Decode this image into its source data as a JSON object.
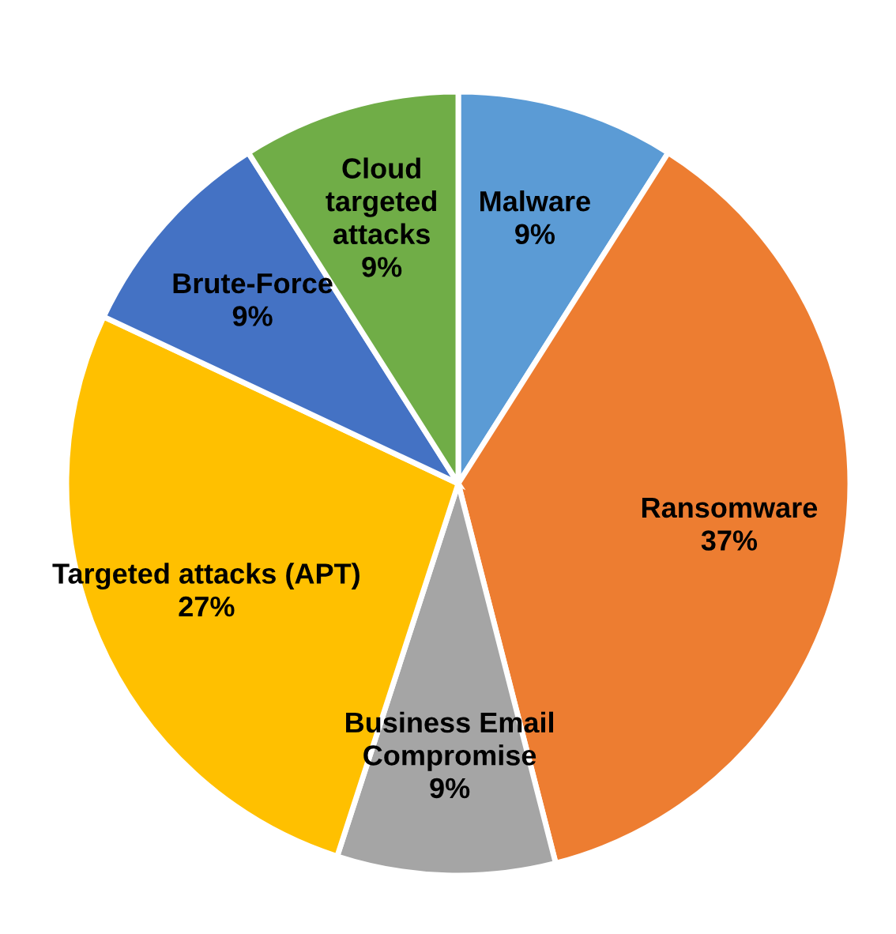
{
  "chart_data": {
    "type": "pie",
    "categories": [
      "Malware",
      "Ransomware",
      "Business Email\nCompromise",
      "Targeted attacks (APT)",
      "Brute-Force",
      "Cloud\ntargeted\nattacks"
    ],
    "values": [
      9,
      37,
      9,
      27,
      9,
      9
    ],
    "value_labels": [
      "9%",
      "37%",
      "9%",
      "27%",
      "9%",
      "9%"
    ],
    "colors": [
      "#5b9bd5",
      "#ed7d31",
      "#a5a5a5",
      "#ffc000",
      "#4472c4",
      "#70ad47"
    ],
    "legend": false
  }
}
